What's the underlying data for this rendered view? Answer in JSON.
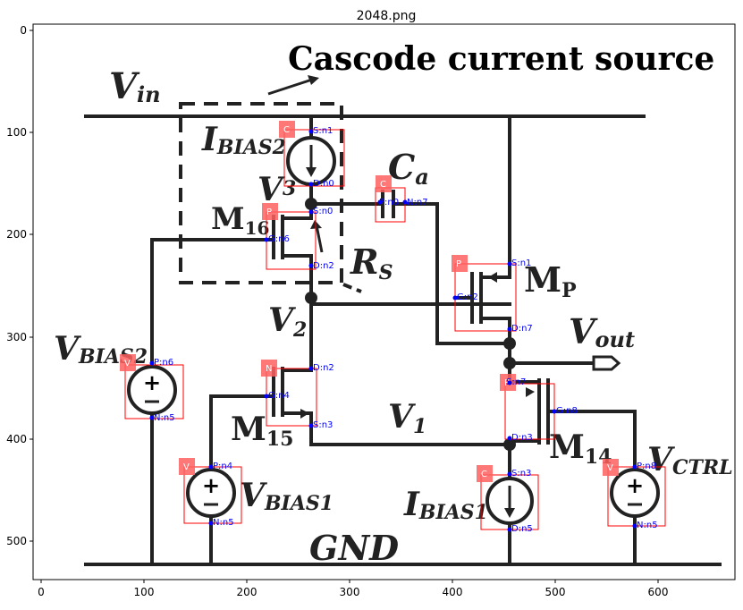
{
  "figure_title": "2048.png",
  "circuit": {
    "title": "Cascode current source",
    "labels": {
      "vin": "V",
      "vin_sub": "in",
      "ibias2": "I",
      "ibias2_sub": "BIAS2",
      "v3": "V",
      "v3_sub": "3",
      "ca": "C",
      "ca_sub": "a",
      "m16": "M",
      "m16_sub": "16",
      "rs": "R",
      "rs_sub": "S",
      "mp": "M",
      "mp_sub": "P",
      "v2": "V",
      "v2_sub": "2",
      "vout": "V",
      "vout_sub": "out",
      "vbias2": "V",
      "vbias2_sub": "BIAS2",
      "m15": "M",
      "m15_sub": "15",
      "v1": "V",
      "v1_sub": "1",
      "m14": "M",
      "m14_sub": "14",
      "vctrl": "V",
      "vctrl_sub": "CTRL",
      "vbias1": "V",
      "vbias1_sub": "BIAS1",
      "ibias1": "I",
      "ibias1_sub": "BIAS1",
      "gnd": "GND"
    }
  },
  "axes": {
    "x_ticks": [
      "0",
      "100",
      "200",
      "300",
      "400",
      "500",
      "600"
    ],
    "y_ticks": [
      "0",
      "100",
      "200",
      "300",
      "400",
      "500"
    ]
  },
  "annotations": {
    "tags": [
      "C",
      "C",
      "P",
      "P",
      "V",
      "N",
      "P",
      "V",
      "C",
      "V"
    ],
    "pins": [
      "S:n1",
      "D:n0",
      "S:n0",
      "G:n6",
      "D:n2",
      "P:n0",
      "N:n7",
      "S:n1",
      "G:n2",
      "D:n7",
      "P:n6",
      "N:n5",
      "D:n2",
      "G:n4",
      "S:n3",
      "S:n7",
      "G:n8",
      "D:n3",
      "P:n4",
      "N:n5",
      "S:n3",
      "D:n5",
      "P:n8",
      "N:n5"
    ]
  }
}
